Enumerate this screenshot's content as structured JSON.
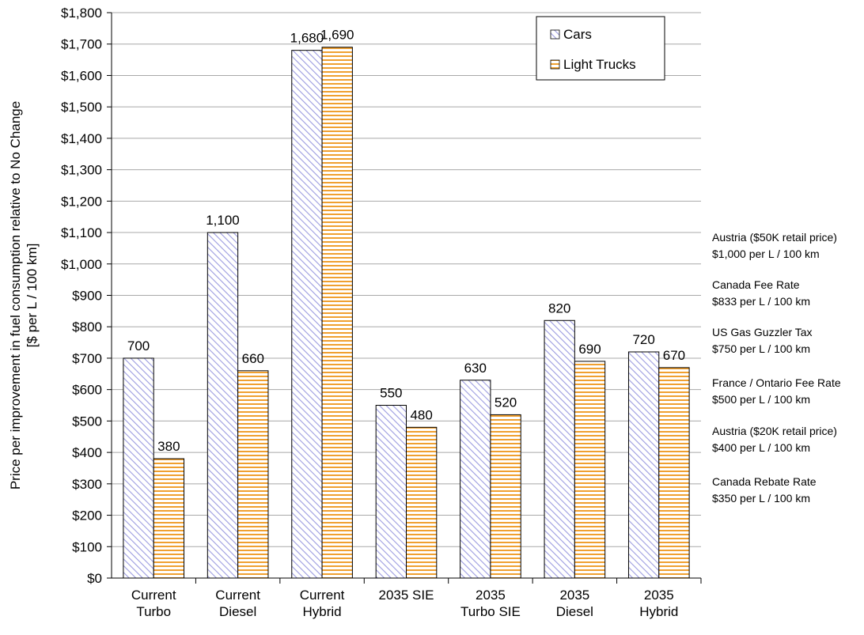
{
  "chart_data": {
    "type": "bar",
    "title": "",
    "ylabel_line1": "Price per improvement in fuel consumption relative to No Change",
    "ylabel_line2": "[$ per L / 100 km]",
    "xlabel": "",
    "ylim": [
      0,
      1800
    ],
    "ytick_step": 100,
    "ytick_labels": [
      "$0",
      "$100",
      "$200",
      "$300",
      "$400",
      "$500",
      "$600",
      "$700",
      "$800",
      "$900",
      "$1,000",
      "$1,100",
      "$1,200",
      "$1,300",
      "$1,400",
      "$1,500",
      "$1,600",
      "$1,700",
      "$1,800"
    ],
    "grid": true,
    "legend_position": "top-right",
    "categories": [
      [
        "Current",
        "Turbo"
      ],
      [
        "Current",
        "Diesel"
      ],
      [
        "Current",
        "Hybrid"
      ],
      [
        "2035 SIE"
      ],
      [
        "2035",
        "Turbo SIE"
      ],
      [
        "2035",
        "Diesel"
      ],
      [
        "2035",
        "Hybrid"
      ]
    ],
    "series": [
      {
        "name": "Cars",
        "pattern": "diagonal-hatch",
        "color": "#9c9ce0",
        "values": [
          700,
          1100,
          1680,
          550,
          630,
          820,
          720
        ],
        "labels": [
          "700",
          "1,100",
          "1,680",
          "550",
          "630",
          "820",
          "720"
        ]
      },
      {
        "name": "Light Trucks",
        "pattern": "horizontal-stripes",
        "color": "#f0a030",
        "values": [
          380,
          660,
          1690,
          480,
          520,
          690,
          670
        ],
        "labels": [
          "380",
          "660",
          "1,690",
          "480",
          "520",
          "690",
          "670"
        ]
      }
    ],
    "annotations": [
      {
        "value": 1000,
        "line1": "Austria ($50K retail price)",
        "line2": "$1,000 per L / 100 km"
      },
      {
        "value": 833,
        "line1": "Canada Fee Rate",
        "line2": "$833 per L / 100 km"
      },
      {
        "value": 750,
        "line1": "US Gas Guzzler Tax",
        "line2": "$750 per L / 100 km"
      },
      {
        "value": 500,
        "line1": "France / Ontario Fee Rate",
        "line2": "$500 per L / 100 km"
      },
      {
        "value": 400,
        "line1": "Austria ($20K retail price)",
        "line2": "$400 per L / 100 km"
      },
      {
        "value": 350,
        "line1": "Canada Rebate Rate",
        "line2": "$350 per L / 100 km"
      }
    ]
  }
}
